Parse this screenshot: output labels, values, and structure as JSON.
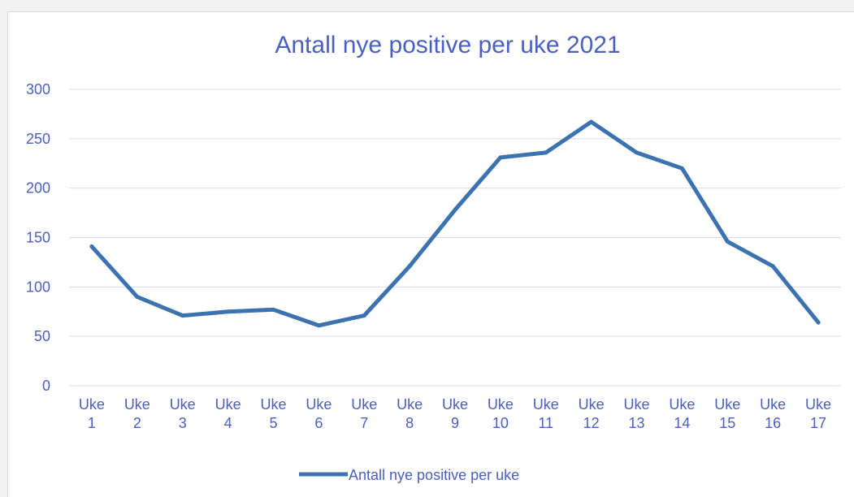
{
  "chart_data": {
    "type": "line",
    "title": "Antall nye positive per uke 2021",
    "categories": [
      [
        "Uke",
        "1"
      ],
      [
        "Uke",
        "2"
      ],
      [
        "Uke",
        "3"
      ],
      [
        "Uke",
        "4"
      ],
      [
        "Uke",
        "5"
      ],
      [
        "Uke",
        "6"
      ],
      [
        "Uke",
        "7"
      ],
      [
        "Uke",
        "8"
      ],
      [
        "Uke",
        "9"
      ],
      [
        "Uke",
        "10"
      ],
      [
        "Uke",
        "11"
      ],
      [
        "Uke",
        "12"
      ],
      [
        "Uke",
        "13"
      ],
      [
        "Uke",
        "14"
      ],
      [
        "Uke",
        "15"
      ],
      [
        "Uke",
        "16"
      ],
      [
        "Uke",
        "17"
      ]
    ],
    "series": [
      {
        "name": "Antall nye positive per uke",
        "values": [
          141,
          90,
          71,
          75,
          77,
          61,
          71,
          121,
          178,
          231,
          236,
          267,
          236,
          220,
          146,
          121,
          64
        ]
      }
    ],
    "y_ticks": [
      "0",
      "50",
      "100",
      "150",
      "200",
      "250",
      "300"
    ],
    "ylim": [
      0,
      300
    ],
    "grid": "horizontal",
    "legend": "bottom",
    "colors": {
      "line": "#3d72b0",
      "text": "#4a5fc2",
      "grid": "#d9dcef"
    }
  }
}
